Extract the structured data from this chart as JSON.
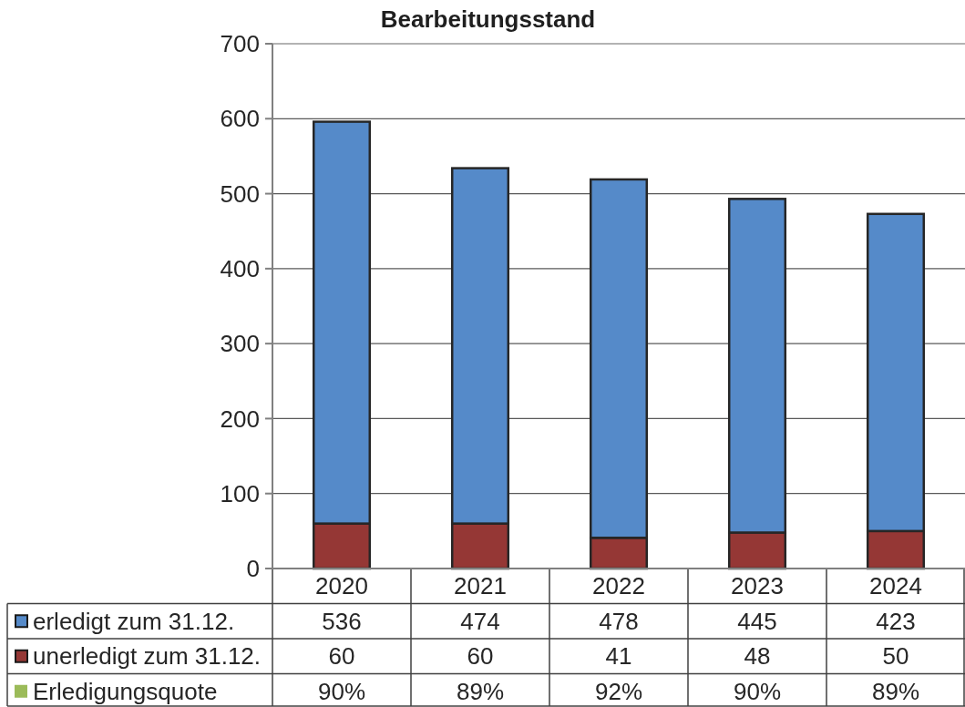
{
  "chart_data": [
    {
      "type": "bar",
      "title": "Bearbeitungsstand",
      "categories": [
        "2020",
        "2021",
        "2022",
        "2023",
        "2024"
      ],
      "stacked": true,
      "series": [
        {
          "name": "unerledigt zum 31.12.",
          "color": "#953735",
          "values": [
            60,
            60,
            41,
            48,
            50
          ]
        },
        {
          "name": "erledigt zum 31.12.",
          "color": "#558ac9",
          "values": [
            536,
            474,
            478,
            445,
            423
          ]
        }
      ],
      "ylim": [
        0,
        700
      ],
      "yticks": [
        0,
        100,
        200,
        300,
        400,
        500,
        600,
        700
      ],
      "grid": "y",
      "legend": "bottom left",
      "data_labels": true
    },
    {
      "type": "other",
      "series": [
        {
          "name": "Erledigungsquote",
          "color": "#9bbb59",
          "values": [
            90,
            89,
            92,
            90,
            89
          ],
          "value_labels": [
            "90%",
            "89%",
            "92%",
            "90%",
            "89%"
          ]
        }
      ],
      "legend": "left"
    }
  ]
}
